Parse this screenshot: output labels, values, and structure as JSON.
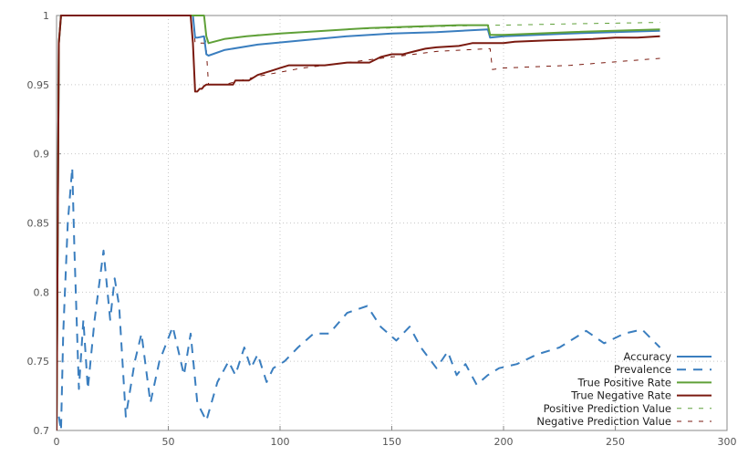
{
  "chart_data": {
    "type": "line",
    "xlim": [
      0,
      300
    ],
    "ylim": [
      0.7,
      1.0
    ],
    "x_ticks": [
      0,
      50,
      100,
      150,
      200,
      250,
      300
    ],
    "y_ticks": [
      0.7,
      0.75,
      0.8,
      0.85,
      0.9,
      0.95,
      1.0
    ],
    "x_tick_labels": [
      "0",
      "50",
      "100",
      "150",
      "200",
      "250",
      "300"
    ],
    "y_tick_labels": [
      "0.7",
      "0.75",
      "0.8",
      "0.85",
      "0.9",
      "0.95",
      "1"
    ],
    "grid": true,
    "legend_position": "bottom-right",
    "series": [
      {
        "name": "Accuracy",
        "color": "#3a7ebf",
        "dash": "solid",
        "x": [
          0,
          1,
          2,
          5,
          10,
          20,
          40,
          60,
          61,
          62,
          63,
          66,
          67,
          68,
          75,
          90,
          110,
          130,
          150,
          170,
          193,
          194,
          200,
          230,
          270
        ],
        "y": [
          0.7,
          0.98,
          1.0,
          1.0,
          1.0,
          1.0,
          1.0,
          1.0,
          1.0,
          0.984,
          0.984,
          0.985,
          0.972,
          0.971,
          0.975,
          0.979,
          0.982,
          0.985,
          0.987,
          0.988,
          0.99,
          0.984,
          0.985,
          0.987,
          0.989
        ]
      },
      {
        "name": "Prevalence",
        "color": "#3a7ebf",
        "dash": "dashed",
        "x": [
          1,
          2,
          3,
          5,
          7,
          8,
          10,
          12,
          14,
          17,
          21,
          24,
          26,
          28,
          31,
          35,
          38,
          42,
          46,
          52,
          57,
          60,
          63,
          67,
          72,
          77,
          80,
          84,
          87,
          90,
          94,
          97,
          102,
          108,
          115,
          122,
          130,
          139,
          145,
          152,
          158,
          163,
          170,
          175,
          179,
          183,
          188,
          193,
          198,
          206,
          215,
          225,
          237,
          245,
          254,
          262,
          270
        ],
        "y": [
          0.71,
          0.7,
          0.77,
          0.85,
          0.89,
          0.83,
          0.73,
          0.78,
          0.73,
          0.78,
          0.83,
          0.78,
          0.81,
          0.79,
          0.71,
          0.75,
          0.77,
          0.72,
          0.75,
          0.775,
          0.74,
          0.77,
          0.72,
          0.707,
          0.735,
          0.75,
          0.74,
          0.76,
          0.745,
          0.755,
          0.735,
          0.745,
          0.75,
          0.76,
          0.77,
          0.77,
          0.785,
          0.79,
          0.775,
          0.765,
          0.775,
          0.76,
          0.745,
          0.757,
          0.74,
          0.748,
          0.733,
          0.74,
          0.745,
          0.748,
          0.755,
          0.76,
          0.772,
          0.763,
          0.77,
          0.773,
          0.76
        ]
      },
      {
        "name": "True Positive Rate",
        "color": "#5fa038",
        "dash": "solid",
        "x": [
          0,
          1,
          2,
          5,
          10,
          30,
          60,
          66,
          67,
          68,
          75,
          85,
          100,
          120,
          140,
          160,
          180,
          193,
          194,
          200,
          230,
          270
        ],
        "y": [
          0.7,
          0.98,
          1.0,
          1.0,
          1.0,
          1.0,
          1.0,
          1.0,
          0.985,
          0.98,
          0.983,
          0.985,
          0.987,
          0.989,
          0.991,
          0.992,
          0.993,
          0.993,
          0.986,
          0.986,
          0.988,
          0.99
        ]
      },
      {
        "name": "True Negative Rate",
        "color": "#7a1a10",
        "dash": "solid",
        "x": [
          0,
          1,
          2,
          5,
          10,
          30,
          60,
          61,
          62,
          63,
          64,
          65,
          66,
          67,
          70,
          79,
          80,
          86,
          90,
          96,
          100,
          104,
          110,
          120,
          125,
          130,
          140,
          145,
          150,
          155,
          160,
          165,
          170,
          180,
          186,
          193,
          194,
          200,
          205,
          220,
          240,
          250,
          260,
          270
        ],
        "y": [
          0.7,
          0.98,
          1.0,
          1.0,
          1.0,
          1.0,
          1.0,
          0.98,
          0.945,
          0.945,
          0.947,
          0.947,
          0.949,
          0.95,
          0.95,
          0.95,
          0.953,
          0.953,
          0.957,
          0.96,
          0.962,
          0.964,
          0.964,
          0.964,
          0.965,
          0.966,
          0.966,
          0.97,
          0.972,
          0.972,
          0.974,
          0.976,
          0.977,
          0.978,
          0.98,
          0.98,
          0.98,
          0.98,
          0.981,
          0.982,
          0.983,
          0.984,
          0.984,
          0.985
        ]
      },
      {
        "name": "Positive Prediction Value",
        "color": "#5fa038",
        "dash": "dotted",
        "x": [
          0,
          1,
          2,
          5,
          10,
          30,
          60,
          61,
          62,
          63,
          66,
          67,
          68,
          75,
          90,
          110,
          130,
          150,
          170,
          193,
          194,
          200,
          230,
          270
        ],
        "y": [
          0.7,
          0.98,
          1.0,
          1.0,
          1.0,
          1.0,
          1.0,
          1.0,
          0.984,
          0.984,
          0.985,
          0.98,
          0.98,
          0.983,
          0.986,
          0.988,
          0.99,
          0.991,
          0.992,
          0.993,
          0.993,
          0.993,
          0.994,
          0.995
        ]
      },
      {
        "name": "Negative Prediction Value",
        "color": "#7a1a10",
        "dash": "dotted",
        "x": [
          0,
          1,
          2,
          5,
          10,
          30,
          60,
          61,
          62,
          63,
          66,
          67,
          68,
          75,
          90,
          110,
          130,
          150,
          170,
          193,
          194,
          195,
          200,
          230,
          270
        ],
        "y": [
          0.7,
          0.98,
          1.0,
          1.0,
          1.0,
          1.0,
          1.0,
          1.0,
          0.98,
          0.98,
          0.98,
          0.975,
          0.95,
          0.95,
          0.956,
          0.962,
          0.966,
          0.97,
          0.974,
          0.976,
          0.976,
          0.961,
          0.962,
          0.964,
          0.969
        ]
      }
    ]
  }
}
